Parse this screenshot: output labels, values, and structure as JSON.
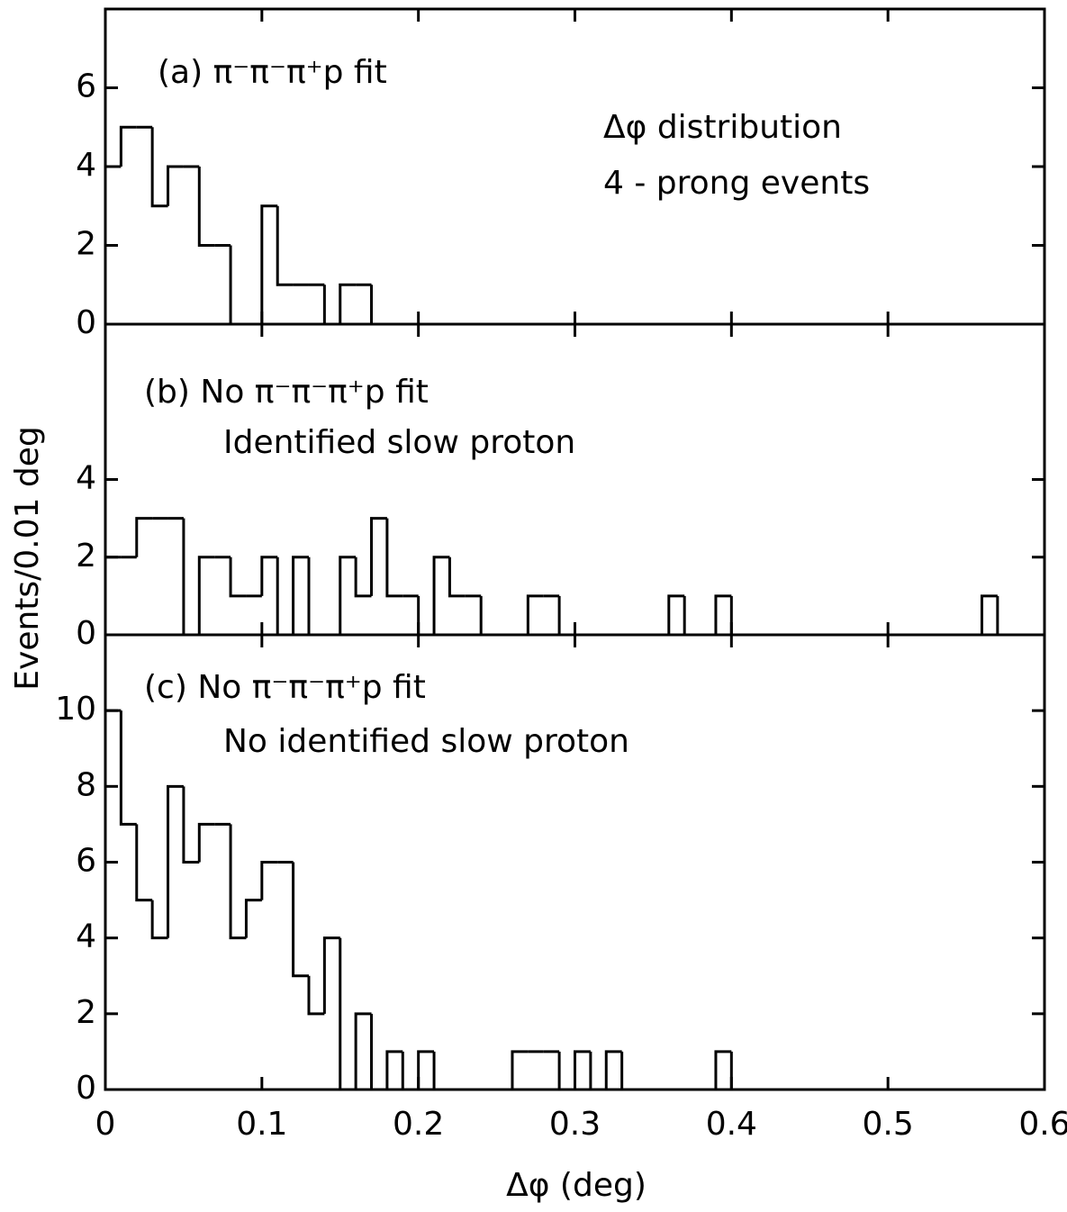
{
  "chart_data": [
    {
      "type": "histogram",
      "annotations": [
        "(a) π⁻π⁻π⁺p  fit",
        "Δφ distribution",
        "4 - prong events"
      ],
      "bins": [
        0,
        0.01,
        0.02,
        0.03,
        0.04,
        0.05,
        0.06,
        0.07,
        0.08,
        0.09,
        0.1,
        0.11,
        0.12,
        0.13,
        0.14,
        0.15,
        0.16,
        0.17,
        0.18,
        0.19,
        0.2,
        0.21,
        0.22,
        0.23,
        0.24,
        0.25,
        0.26,
        0.27,
        0.28,
        0.29,
        0.3,
        0.31,
        0.32,
        0.33,
        0.34,
        0.35,
        0.36,
        0.37,
        0.38,
        0.39,
        0.4,
        0.41,
        0.42,
        0.43,
        0.44,
        0.45,
        0.46,
        0.47,
        0.48,
        0.49,
        0.5,
        0.51,
        0.52,
        0.53,
        0.54,
        0.55,
        0.56,
        0.57,
        0.58,
        0.59,
        0.6
      ],
      "values": [
        4,
        5,
        5,
        3,
        4,
        4,
        2,
        2,
        0,
        0,
        3,
        1,
        1,
        1,
        0,
        1,
        1,
        0,
        0,
        0,
        0,
        0,
        0,
        0,
        0,
        0,
        0,
        0,
        0,
        0,
        0,
        0,
        0,
        0,
        0,
        0,
        0,
        0,
        0,
        0,
        0,
        0,
        0,
        0,
        0,
        0,
        0,
        0,
        0,
        0,
        0,
        0,
        0,
        0,
        0,
        0,
        0,
        0,
        0,
        0
      ],
      "xlim": [
        0,
        0.6
      ],
      "ylim": [
        0,
        8
      ],
      "yticks": [
        0,
        2,
        4,
        6
      ],
      "color": "#000000"
    },
    {
      "type": "histogram",
      "annotations": [
        "(b) No  π⁻π⁻π⁺p  fit",
        "Identified slow proton"
      ],
      "y_label": "Events/0.01 deg",
      "bins": [
        0,
        0.01,
        0.02,
        0.03,
        0.04,
        0.05,
        0.06,
        0.07,
        0.08,
        0.09,
        0.1,
        0.11,
        0.12,
        0.13,
        0.14,
        0.15,
        0.16,
        0.17,
        0.18,
        0.19,
        0.2,
        0.21,
        0.22,
        0.23,
        0.24,
        0.25,
        0.26,
        0.27,
        0.28,
        0.29,
        0.3,
        0.31,
        0.32,
        0.33,
        0.34,
        0.35,
        0.36,
        0.37,
        0.38,
        0.39,
        0.4,
        0.41,
        0.42,
        0.43,
        0.44,
        0.45,
        0.46,
        0.47,
        0.48,
        0.49,
        0.5,
        0.51,
        0.52,
        0.53,
        0.54,
        0.55,
        0.56,
        0.57,
        0.58,
        0.59,
        0.6
      ],
      "values": [
        2,
        2,
        3,
        3,
        3,
        0,
        2,
        2,
        1,
        1,
        2,
        0,
        2,
        0,
        0,
        2,
        1,
        3,
        1,
        1,
        0,
        2,
        1,
        1,
        0,
        0,
        0,
        1,
        1,
        0,
        0,
        0,
        0,
        0,
        0,
        0,
        1,
        0,
        0,
        1,
        0,
        0,
        0,
        0,
        0,
        0,
        0,
        0,
        0,
        0,
        0,
        0,
        0,
        0,
        0,
        0,
        1,
        0,
        0,
        0
      ],
      "xlim": [
        0,
        0.6
      ],
      "ylim": [
        0,
        8
      ],
      "yticks": [
        0,
        2,
        4
      ],
      "color": "#000000"
    },
    {
      "type": "histogram",
      "annotations": [
        "(c) No  π⁻π⁻π⁺p  fit",
        "No identified slow proton"
      ],
      "x_label": "Δφ    (deg)",
      "bins": [
        0,
        0.01,
        0.02,
        0.03,
        0.04,
        0.05,
        0.06,
        0.07,
        0.08,
        0.09,
        0.1,
        0.11,
        0.12,
        0.13,
        0.14,
        0.15,
        0.16,
        0.17,
        0.18,
        0.19,
        0.2,
        0.21,
        0.22,
        0.23,
        0.24,
        0.25,
        0.26,
        0.27,
        0.28,
        0.29,
        0.3,
        0.31,
        0.32,
        0.33,
        0.34,
        0.35,
        0.36,
        0.37,
        0.38,
        0.39,
        0.4,
        0.41,
        0.42,
        0.43,
        0.44,
        0.45,
        0.46,
        0.47,
        0.48,
        0.49,
        0.5,
        0.51,
        0.52,
        0.53,
        0.54,
        0.55,
        0.56,
        0.57,
        0.58,
        0.59,
        0.6
      ],
      "values": [
        10,
        7,
        5,
        4,
        8,
        6,
        7,
        7,
        4,
        5,
        6,
        6,
        3,
        2,
        4,
        0,
        2,
        0,
        1,
        0,
        1,
        0,
        0,
        0,
        0,
        0,
        1,
        1,
        1,
        0,
        1,
        0,
        1,
        0,
        0,
        0,
        0,
        0,
        0,
        1,
        0,
        0,
        0,
        0,
        0,
        0,
        0,
        0,
        0,
        0,
        0,
        0,
        0,
        0,
        0,
        0,
        0,
        0,
        0,
        0
      ],
      "xlim": [
        0,
        0.6
      ],
      "xticks": [
        0,
        0.1,
        0.2,
        0.3,
        0.4,
        0.5,
        0.6
      ],
      "ylim": [
        0,
        12
      ],
      "yticks": [
        0,
        2,
        4,
        6,
        8,
        10
      ],
      "color": "#000000"
    }
  ]
}
